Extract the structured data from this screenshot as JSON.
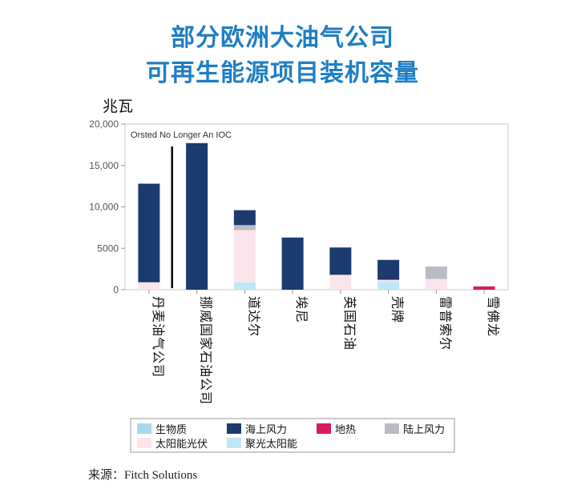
{
  "title_line1": "部分欧洲大油气公司",
  "title_line2": "可再生能源项目装机容量",
  "unit_label": "兆瓦",
  "source": "来源：Fitch Solutions",
  "colors": {
    "title": "#1f7ec2",
    "生物质": "#a8d9ef",
    "海上风力": "#1b3a6e",
    "地热": "#d81b60",
    "陆上风力": "#b9bcc6",
    "太阳能光伏": "#fbe4ec",
    "聚光太阳能": "#bfe6f6"
  },
  "chart_data": {
    "type": "bar",
    "stacked": true,
    "title": "部分欧洲大油气公司可再生能源项目装机容量",
    "ylabel": "兆瓦",
    "ylim": [
      0,
      20000
    ],
    "yticks": [
      0,
      5000,
      10000,
      15000,
      20000
    ],
    "ytick_labels": [
      "0",
      "5000",
      "10,000",
      "15,000",
      "20,000"
    ],
    "categories": [
      "丹麦油气公司",
      "挪威国家石油公司",
      "道达尔",
      "埃尼",
      "英国石油",
      "壳牌",
      "雷普索尔",
      "雪佛龙"
    ],
    "series": [
      {
        "name": "生物质",
        "values": [
          0,
          0,
          0,
          0,
          0,
          0,
          0,
          0
        ]
      },
      {
        "name": "聚光太阳能",
        "values": [
          0,
          0,
          900,
          0,
          0,
          1000,
          0,
          0
        ]
      },
      {
        "name": "太阳能光伏",
        "values": [
          900,
          0,
          6300,
          0,
          1800,
          200,
          1300,
          0
        ]
      },
      {
        "name": "陆上风力",
        "values": [
          0,
          0,
          600,
          0,
          0,
          0,
          1500,
          0
        ]
      },
      {
        "name": "海上风力",
        "values": [
          11900,
          17700,
          1800,
          6300,
          3300,
          2400,
          0,
          0
        ]
      },
      {
        "name": "地热",
        "values": [
          0,
          0,
          0,
          0,
          0,
          0,
          0,
          400
        ]
      }
    ],
    "annotation": "Orsted No Longer An IOC",
    "legend": [
      "生物质",
      "海上风力",
      "地热",
      "陆上风力",
      "太阳能光伏",
      "聚光太阳能"
    ],
    "legend_position": "bottom"
  }
}
